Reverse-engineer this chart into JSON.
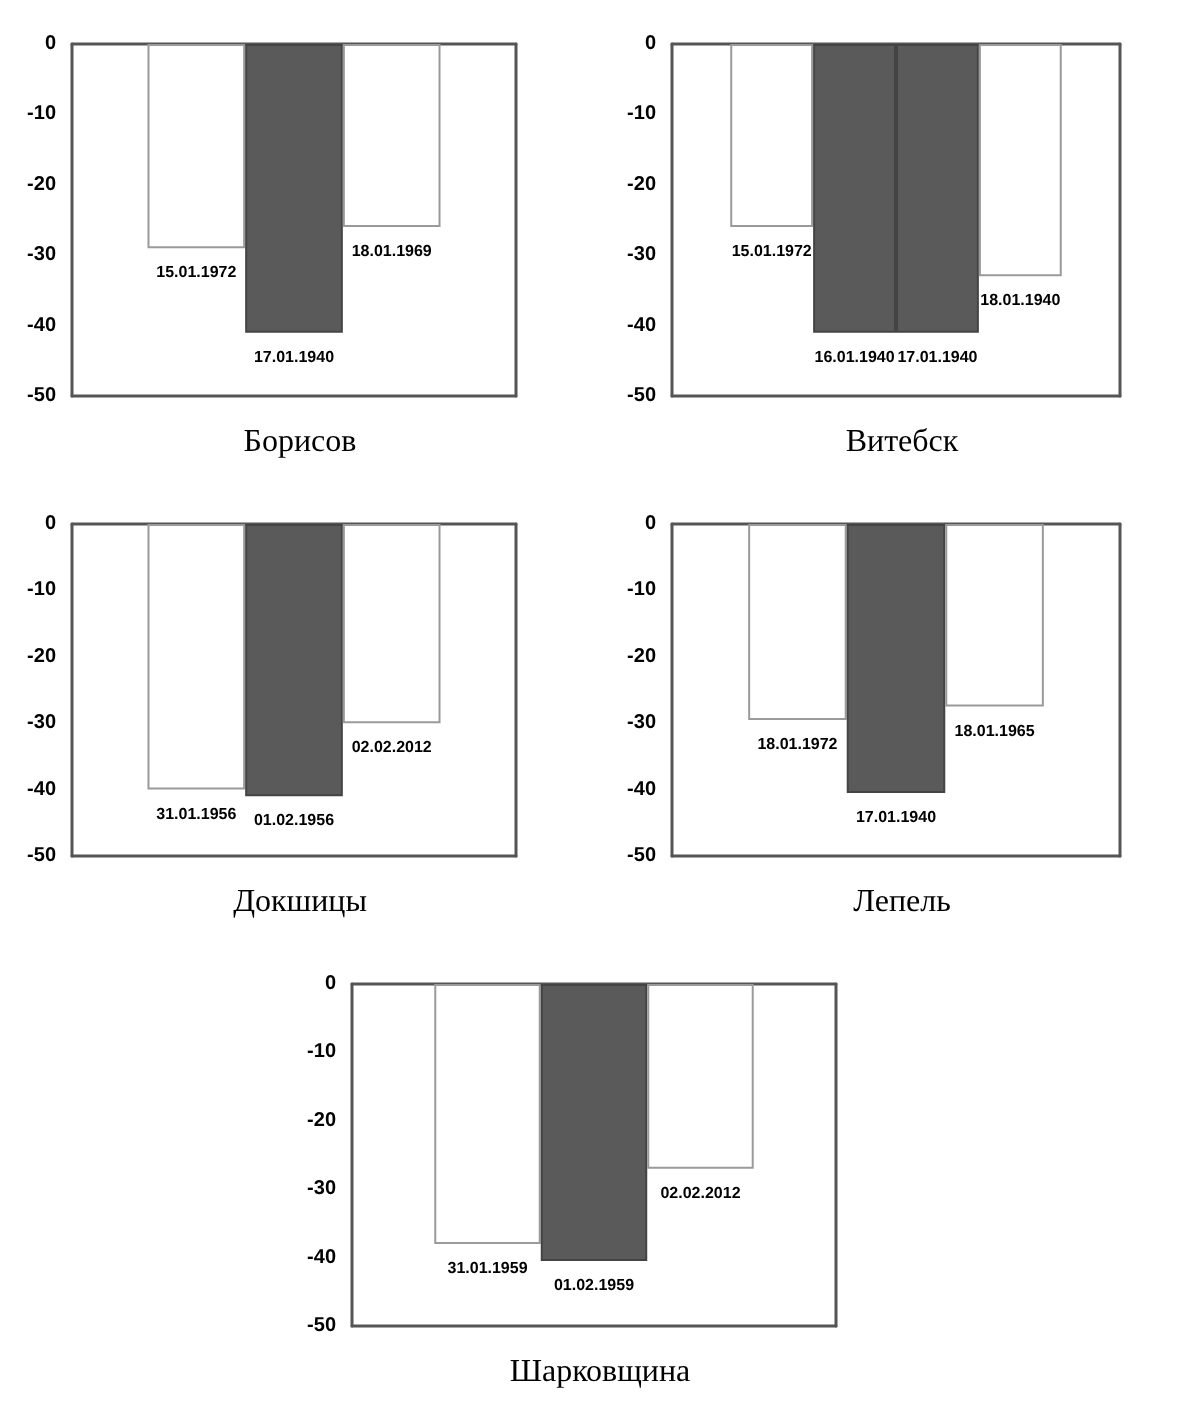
{
  "chart_data": [
    {
      "type": "bar",
      "title": "Борисов",
      "categories": [
        null,
        null,
        null
      ],
      "values": [
        -29,
        -41,
        -26
      ],
      "colors": [
        "#ffffff",
        "#5a5a5a",
        "#ffffff"
      ],
      "value_labels": [
        "15.01.1972",
        "17.01.1940",
        "18.01.1969"
      ],
      "ylim": [
        -50,
        0
      ],
      "yticks": [
        0,
        -10,
        -20,
        -30,
        -40,
        -50
      ],
      "tick_labels": "y"
    },
    {
      "type": "bar",
      "title": "Витебск",
      "categories": [
        null,
        null,
        null,
        null
      ],
      "values": [
        -26,
        -41,
        -41,
        -33
      ],
      "colors": [
        "#ffffff",
        "#5a5a5a",
        "#5a5a5a",
        "#ffffff"
      ],
      "value_labels": [
        "15.01.1972",
        "16.01.1940",
        "17.01.1940",
        "18.01.1940"
      ],
      "ylim": [
        -50,
        0
      ],
      "yticks": [
        0,
        -10,
        -20,
        -30,
        -40,
        -50
      ],
      "tick_labels": "y"
    },
    {
      "type": "bar",
      "title": "Докшицы",
      "categories": [
        null,
        null,
        null
      ],
      "values": [
        -40,
        -41,
        -30
      ],
      "colors": [
        "#ffffff",
        "#5a5a5a",
        "#ffffff"
      ],
      "value_labels": [
        "31.01.1956",
        "01.02.1956",
        "02.02.2012"
      ],
      "ylim": [
        -50,
        0
      ],
      "yticks": [
        0,
        -10,
        -20,
        -30,
        -40,
        -50
      ],
      "tick_labels": "y"
    },
    {
      "type": "bar",
      "title": "Лепель",
      "categories": [
        null,
        null,
        null
      ],
      "values": [
        -29.5,
        -40.5,
        -27.5
      ],
      "colors": [
        "#ffffff",
        "#5a5a5a",
        "#ffffff"
      ],
      "value_labels": [
        "18.01.1972",
        "17.01.1940",
        "18.01.1965"
      ],
      "ylim": [
        -50,
        0
      ],
      "yticks": [
        0,
        -10,
        -20,
        -30,
        -40,
        -50
      ],
      "tick_labels": "y"
    },
    {
      "type": "bar",
      "title": "Шарковщина",
      "categories": [
        null,
        null,
        null
      ],
      "values": [
        -38,
        -40.5,
        -27
      ],
      "colors": [
        "#ffffff",
        "#5a5a5a",
        "#ffffff"
      ],
      "value_labels": [
        "31.01.1959",
        "01.02.1959",
        "02.02.2012"
      ],
      "ylim": [
        -50,
        0
      ],
      "yticks": [
        0,
        -10,
        -20,
        -30,
        -40,
        -50
      ],
      "tick_labels": "y"
    }
  ]
}
